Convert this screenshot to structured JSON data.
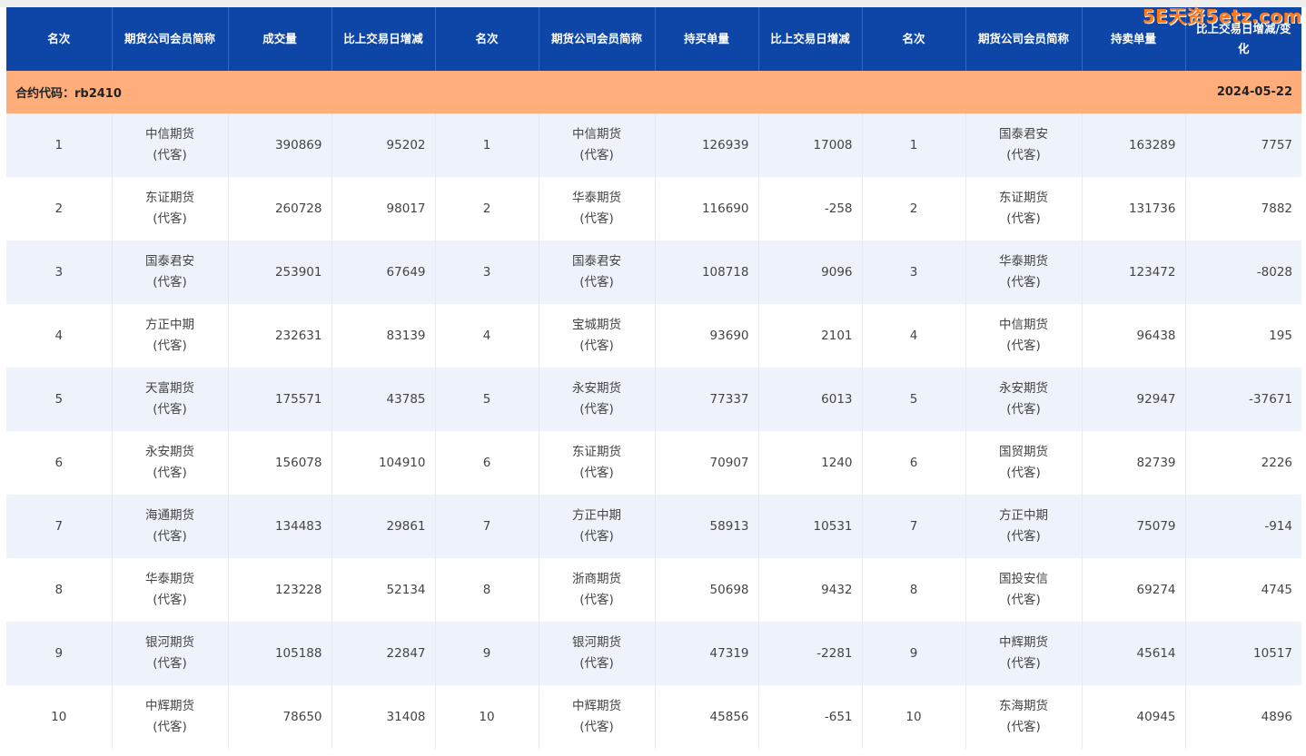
{
  "watermark": "5E天资5etz.com",
  "colors": {
    "header_bg": "#0e46a8",
    "info_bg": "#ffad7a",
    "row_odd": "#eef2fa",
    "row_even": "#ffffff"
  },
  "headers": [
    "名次",
    "期货公司会员简称",
    "成交量",
    "比上交易日增减",
    "名次",
    "期货公司会员简称",
    "持买单量",
    "比上交易日增减",
    "名次",
    "期货公司会员简称",
    "持卖单量",
    "比上交易日增减/变化"
  ],
  "contract_label": "合约代码：rb2410",
  "date": "2024-05-22",
  "rows": [
    {
      "r1": "1",
      "c1a": "中信期货",
      "c1b": "(代客)",
      "vol": "390869",
      "vol_chg": "95202",
      "r2": "1",
      "c2a": "中信期货",
      "c2b": "(代客)",
      "buy": "126939",
      "buy_chg": "17008",
      "r3": "1",
      "c3a": "国泰君安",
      "c3b": "(代客)",
      "sell": "163289",
      "sell_chg": "7757"
    },
    {
      "r1": "2",
      "c1a": "东证期货",
      "c1b": "(代客)",
      "vol": "260728",
      "vol_chg": "98017",
      "r2": "2",
      "c2a": "华泰期货",
      "c2b": "(代客)",
      "buy": "116690",
      "buy_chg": "-258",
      "r3": "2",
      "c3a": "东证期货",
      "c3b": "(代客)",
      "sell": "131736",
      "sell_chg": "7882"
    },
    {
      "r1": "3",
      "c1a": "国泰君安",
      "c1b": "(代客)",
      "vol": "253901",
      "vol_chg": "67649",
      "r2": "3",
      "c2a": "国泰君安",
      "c2b": "(代客)",
      "buy": "108718",
      "buy_chg": "9096",
      "r3": "3",
      "c3a": "华泰期货",
      "c3b": "(代客)",
      "sell": "123472",
      "sell_chg": "-8028"
    },
    {
      "r1": "4",
      "c1a": "方正中期",
      "c1b": "(代客)",
      "vol": "232631",
      "vol_chg": "83139",
      "r2": "4",
      "c2a": "宝城期货",
      "c2b": "(代客)",
      "buy": "93690",
      "buy_chg": "2101",
      "r3": "4",
      "c3a": "中信期货",
      "c3b": "(代客)",
      "sell": "96438",
      "sell_chg": "195"
    },
    {
      "r1": "5",
      "c1a": "天富期货",
      "c1b": "(代客)",
      "vol": "175571",
      "vol_chg": "43785",
      "r2": "5",
      "c2a": "永安期货",
      "c2b": "(代客)",
      "buy": "77337",
      "buy_chg": "6013",
      "r3": "5",
      "c3a": "永安期货",
      "c3b": "(代客)",
      "sell": "92947",
      "sell_chg": "-37671"
    },
    {
      "r1": "6",
      "c1a": "永安期货",
      "c1b": "(代客)",
      "vol": "156078",
      "vol_chg": "104910",
      "r2": "6",
      "c2a": "东证期货",
      "c2b": "(代客)",
      "buy": "70907",
      "buy_chg": "1240",
      "r3": "6",
      "c3a": "国贸期货",
      "c3b": "(代客)",
      "sell": "82739",
      "sell_chg": "2226"
    },
    {
      "r1": "7",
      "c1a": "海通期货",
      "c1b": "(代客)",
      "vol": "134483",
      "vol_chg": "29861",
      "r2": "7",
      "c2a": "方正中期",
      "c2b": "(代客)",
      "buy": "58913",
      "buy_chg": "10531",
      "r3": "7",
      "c3a": "方正中期",
      "c3b": "(代客)",
      "sell": "75079",
      "sell_chg": "-914"
    },
    {
      "r1": "8",
      "c1a": "华泰期货",
      "c1b": "(代客)",
      "vol": "123228",
      "vol_chg": "52134",
      "r2": "8",
      "c2a": "浙商期货",
      "c2b": "(代客)",
      "buy": "50698",
      "buy_chg": "9432",
      "r3": "8",
      "c3a": "国投安信",
      "c3b": "(代客)",
      "sell": "69274",
      "sell_chg": "4745"
    },
    {
      "r1": "9",
      "c1a": "银河期货",
      "c1b": "(代客)",
      "vol": "105188",
      "vol_chg": "22847",
      "r2": "9",
      "c2a": "银河期货",
      "c2b": "(代客)",
      "buy": "47319",
      "buy_chg": "-2281",
      "r3": "9",
      "c3a": "中辉期货",
      "c3b": "(代客)",
      "sell": "45614",
      "sell_chg": "10517"
    },
    {
      "r1": "10",
      "c1a": "中辉期货",
      "c1b": "(代客)",
      "vol": "78650",
      "vol_chg": "31408",
      "r2": "10",
      "c2a": "中辉期货",
      "c2b": "(代客)",
      "buy": "45856",
      "buy_chg": "-651",
      "r3": "10",
      "c3a": "东海期货",
      "c3b": "(代客)",
      "sell": "40945",
      "sell_chg": "4896"
    }
  ]
}
